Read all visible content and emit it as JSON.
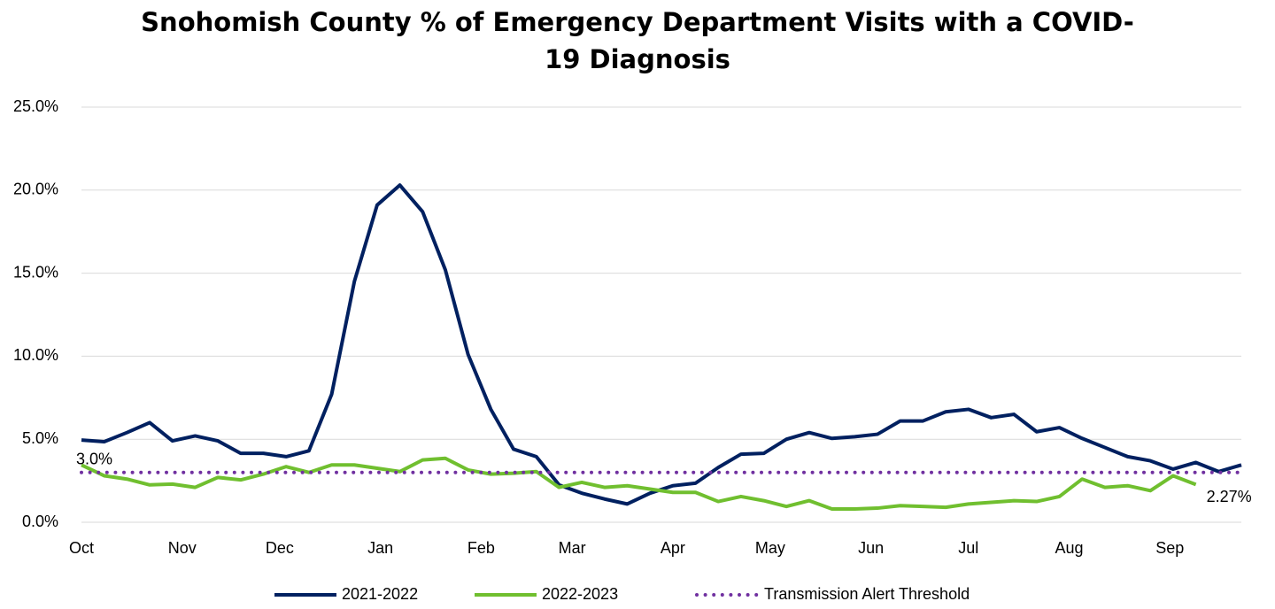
{
  "chart_data": {
    "type": "line",
    "title": "Snohomish County % of Emergency Department Visits with a COVID-19 Diagnosis",
    "x": [
      0,
      7,
      14,
      21,
      28,
      35,
      42,
      49,
      56,
      63,
      70,
      77,
      84,
      91,
      98,
      105,
      112,
      119,
      126,
      133,
      140,
      147,
      154,
      161,
      168,
      175,
      182,
      189,
      196,
      203,
      210,
      217,
      224,
      231,
      238,
      245,
      252,
      259,
      266,
      273,
      280,
      287,
      294,
      301,
      308,
      315,
      322,
      329,
      336,
      343,
      350,
      357
    ],
    "xlim": [
      0,
      357
    ],
    "xticks": [
      {
        "value": 0,
        "label": "Oct"
      },
      {
        "value": 31,
        "label": "Nov"
      },
      {
        "value": 61,
        "label": "Dec"
      },
      {
        "value": 92,
        "label": "Jan"
      },
      {
        "value": 123,
        "label": "Feb"
      },
      {
        "value": 151,
        "label": "Mar"
      },
      {
        "value": 182,
        "label": "Apr"
      },
      {
        "value": 212,
        "label": "May"
      },
      {
        "value": 243,
        "label": "Jun"
      },
      {
        "value": 273,
        "label": "Jul"
      },
      {
        "value": 304,
        "label": "Aug"
      },
      {
        "value": 335,
        "label": "Sep"
      }
    ],
    "ylim": [
      0,
      25
    ],
    "yticks": [
      {
        "value": 0,
        "label": "0.0%"
      },
      {
        "value": 5,
        "label": "5.0%"
      },
      {
        "value": 10,
        "label": "10.0%"
      },
      {
        "value": 15,
        "label": "15.0%"
      },
      {
        "value": 20,
        "label": "20.0%"
      },
      {
        "value": 25,
        "label": "25.0%"
      }
    ],
    "grid": true,
    "legend": "bottom",
    "series": [
      {
        "name": "2021-2022",
        "color": "#002060",
        "style": "solid",
        "values": [
          4.95,
          4.85,
          5.4,
          6.0,
          4.9,
          5.2,
          4.9,
          4.15,
          4.15,
          3.95,
          4.3,
          7.7,
          14.5,
          19.1,
          20.3,
          18.7,
          15.2,
          10.1,
          6.8,
          4.4,
          3.95,
          2.25,
          1.75,
          1.4,
          1.1,
          1.75,
          2.2,
          2.35,
          3.3,
          4.1,
          4.15,
          5.0,
          5.4,
          5.05,
          5.15,
          5.3,
          6.1,
          6.1,
          6.65,
          6.8,
          6.3,
          6.5,
          5.45,
          5.7,
          5.05,
          4.5,
          3.95,
          3.7,
          3.2,
          3.6,
          3.05,
          3.45
        ]
      },
      {
        "name": "2022-2023",
        "color": "#70bf2f",
        "style": "solid",
        "values": [
          3.45,
          2.8,
          2.6,
          2.25,
          2.3,
          2.1,
          2.7,
          2.55,
          2.9,
          3.35,
          3.0,
          3.45,
          3.45,
          3.25,
          3.05,
          3.75,
          3.85,
          3.15,
          2.9,
          2.95,
          3.05,
          2.1,
          2.4,
          2.1,
          2.2,
          2.0,
          1.8,
          1.8,
          1.25,
          1.55,
          1.3,
          0.95,
          1.3,
          0.8,
          0.8,
          0.85,
          1.0,
          0.95,
          0.9,
          1.1,
          1.2,
          1.3,
          1.25,
          1.55,
          2.6,
          2.1,
          2.2,
          1.9,
          2.8,
          2.27,
          null,
          null
        ],
        "value_labels": [
          null,
          null,
          null,
          null,
          null,
          null,
          null,
          null,
          null,
          null,
          null,
          null,
          null,
          null,
          null,
          null,
          null,
          null,
          null,
          null,
          null,
          null,
          null,
          null,
          null,
          null,
          null,
          null,
          null,
          null,
          null,
          null,
          null,
          null,
          null,
          null,
          null,
          null,
          null,
          null,
          null,
          null,
          null,
          null,
          null,
          null,
          null,
          null,
          null,
          "2.27%",
          null,
          null
        ]
      },
      {
        "name": "Transmission Alert Threshold",
        "color": "#7030a0",
        "style": "dotted",
        "values": [
          3.0,
          3.0,
          3.0,
          3.0,
          3.0,
          3.0,
          3.0,
          3.0,
          3.0,
          3.0,
          3.0,
          3.0,
          3.0,
          3.0,
          3.0,
          3.0,
          3.0,
          3.0,
          3.0,
          3.0,
          3.0,
          3.0,
          3.0,
          3.0,
          3.0,
          3.0,
          3.0,
          3.0,
          3.0,
          3.0,
          3.0,
          3.0,
          3.0,
          3.0,
          3.0,
          3.0,
          3.0,
          3.0,
          3.0,
          3.0,
          3.0,
          3.0,
          3.0,
          3.0,
          3.0,
          3.0,
          3.0,
          3.0,
          3.0,
          3.0,
          3.0,
          3.0
        ],
        "value_labels": [
          "3.0%",
          null,
          null,
          null,
          null,
          null,
          null,
          null,
          null,
          null,
          null,
          null,
          null,
          null,
          null,
          null,
          null,
          null,
          null,
          null,
          null,
          null,
          null,
          null,
          null,
          null,
          null,
          null,
          null,
          null,
          null,
          null,
          null,
          null,
          null,
          null,
          null,
          null,
          null,
          null,
          null,
          null,
          null,
          null,
          null,
          null,
          null,
          null,
          null,
          null,
          null,
          null
        ]
      }
    ]
  }
}
